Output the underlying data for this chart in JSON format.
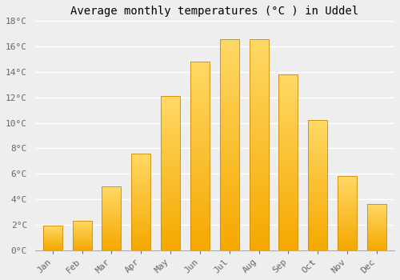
{
  "title": "Average monthly temperatures (°C ) in Uddel",
  "months": [
    "Jan",
    "Feb",
    "Mar",
    "Apr",
    "May",
    "Jun",
    "Jul",
    "Aug",
    "Sep",
    "Oct",
    "Nov",
    "Dec"
  ],
  "values": [
    1.9,
    2.3,
    5.0,
    7.6,
    12.1,
    14.8,
    16.6,
    16.6,
    13.8,
    10.2,
    5.8,
    3.6
  ],
  "bar_color_bottom": "#F5A800",
  "bar_color_top": "#FFD966",
  "bar_edge_color": "#CC8800",
  "ylim": [
    0,
    18
  ],
  "yticks": [
    0,
    2,
    4,
    6,
    8,
    10,
    12,
    14,
    16,
    18
  ],
  "ytick_labels": [
    "0°C",
    "2°C",
    "4°C",
    "6°C",
    "8°C",
    "10°C",
    "12°C",
    "14°C",
    "16°C",
    "18°C"
  ],
  "background_color": "#eeeeee",
  "grid_color": "#ffffff",
  "title_fontsize": 10,
  "tick_fontsize": 8,
  "font_family": "monospace",
  "bar_width": 0.65,
  "n_gradient_steps": 50
}
